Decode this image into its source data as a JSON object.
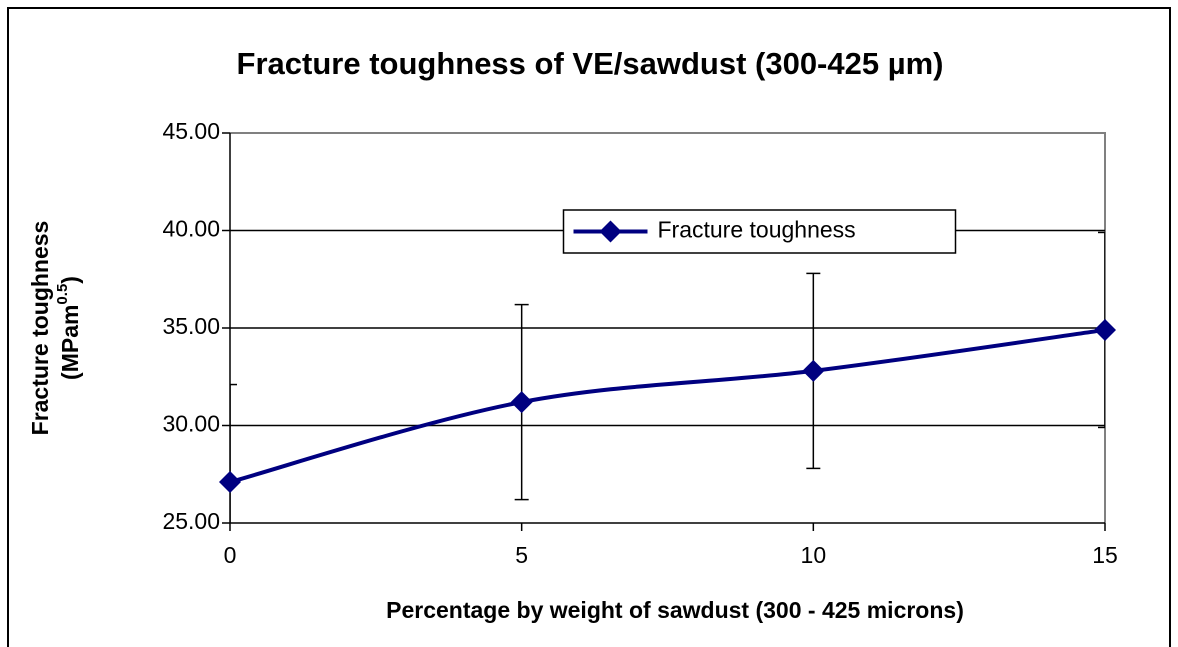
{
  "chart_data": {
    "type": "line",
    "title": "Fracture toughness of VE/sawdust (300-425 µm)",
    "xlabel": "Percentage by weight of sawdust (300 - 425 microns)",
    "ylabel": {
      "text": "Fracture toughness",
      "unit_open": "(MPam",
      "unit_exponent": "0.5",
      "unit_close": ")"
    },
    "x": [
      0,
      5,
      10,
      15
    ],
    "xlim": [
      0,
      15
    ],
    "xticks": [
      0,
      5,
      10,
      15
    ],
    "ylim": [
      25,
      45
    ],
    "yticks": [
      {
        "value": 25,
        "label": "25.00"
      },
      {
        "value": 30,
        "label": "30.00"
      },
      {
        "value": 35,
        "label": "35.00"
      },
      {
        "value": 40,
        "label": "40.00"
      },
      {
        "value": 45,
        "label": "45.00"
      }
    ],
    "grid": true,
    "smooth": true,
    "legend": "upper center",
    "series": [
      {
        "name": "Fracture toughness",
        "color": "#000080",
        "values": [
          27.1,
          31.2,
          32.8,
          34.9
        ],
        "errors": [
          5,
          5,
          5,
          5
        ]
      }
    ]
  }
}
